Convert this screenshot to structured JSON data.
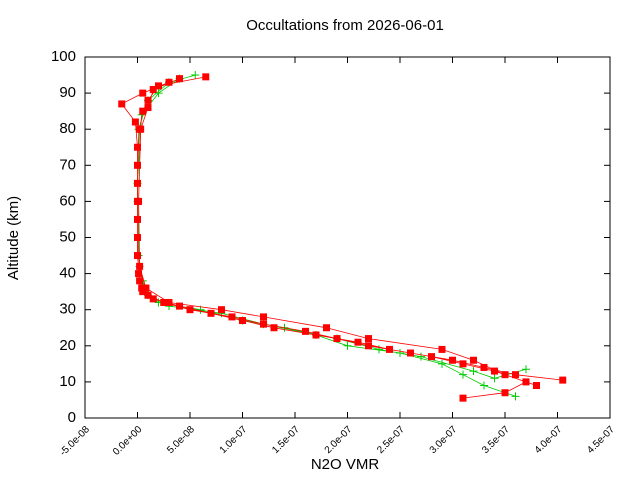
{
  "chart_data": {
    "type": "line",
    "title": "Occultations from 2026-06-01",
    "xlabel": "N2O VMR",
    "ylabel": "Altitude (km)",
    "xlim": [
      -5e-08,
      4.5e-07
    ],
    "ylim": [
      0,
      100
    ],
    "xticks": [
      {
        "value": -5e-08,
        "label": "-5.0e-08"
      },
      {
        "value": 0,
        "label": "0.0e+00"
      },
      {
        "value": 5e-08,
        "label": "5.0e-08"
      },
      {
        "value": 1e-07,
        "label": "1.0e-07"
      },
      {
        "value": 1.5e-07,
        "label": "1.5e-07"
      },
      {
        "value": 2e-07,
        "label": "2.0e-07"
      },
      {
        "value": 2.5e-07,
        "label": "2.5e-07"
      },
      {
        "value": 3e-07,
        "label": "3.0e-07"
      },
      {
        "value": 3.5e-07,
        "label": "3.5e-07"
      },
      {
        "value": 4e-07,
        "label": "4.0e-07"
      },
      {
        "value": 4.5e-07,
        "label": "4.5e-07"
      }
    ],
    "yticks": [
      0,
      10,
      20,
      30,
      40,
      50,
      60,
      70,
      80,
      90,
      100
    ],
    "series": [
      {
        "color": "#00cc00",
        "marker": "plus",
        "x": [
          3.6e-07,
          3.3e-07,
          3.1e-07,
          2.9e-07,
          2.5e-07,
          2e-07,
          1.7e-07,
          1.2e-07,
          8e-08,
          3e-08,
          1e-08,
          5e-09,
          2e-09,
          0,
          1e-09,
          1e-08,
          3e-08,
          5.5e-08,
          null,
          3.7e-07,
          3.4e-07,
          3.2e-07,
          2.7e-07,
          2.3e-07,
          1.9e-07,
          1.4e-07,
          1e-07,
          6e-08,
          2e-08,
          6e-09,
          1e-09,
          0,
          4e-09,
          2e-08,
          4e-08
        ],
        "values": [
          6,
          9,
          12,
          15,
          18,
          20,
          23,
          26,
          29,
          31,
          34,
          38,
          42,
          60,
          80,
          88,
          93,
          95,
          null,
          13.5,
          11,
          13,
          17,
          19,
          22,
          25,
          27,
          30,
          32,
          36,
          45,
          65,
          84,
          90,
          94
        ]
      },
      {
        "color": "#ff0000",
        "marker": "square",
        "x": [
          4.05e-07,
          3.6e-07,
          3.3e-07,
          3e-07,
          2.6e-07,
          2.2e-07,
          1.9e-07,
          1.6e-07,
          1.2e-07,
          9e-08,
          5e-08,
          2.5e-08,
          1e-08,
          4e-09,
          1e-09,
          0,
          0,
          0,
          2e-09,
          5e-09,
          1e-08,
          2e-08,
          6.5e-08,
          null,
          3.1e-07,
          3.5e-07,
          3.7e-07,
          3.4e-07,
          3.1e-07,
          2.8e-07,
          2.4e-07,
          2.1e-07,
          1.7e-07,
          1.3e-07,
          1e-07,
          7e-08,
          4e-08,
          1.5e-08,
          5e-09,
          2e-09,
          0,
          0,
          0,
          0,
          -2e-09,
          -1.5e-08,
          5e-09,
          3e-08,
          null,
          3.8e-07,
          3.5e-07,
          3.2e-07,
          2.9e-07,
          2.2e-07,
          1.8e-07,
          1.2e-07,
          8e-08,
          3e-08,
          8e-09,
          2e-09,
          1e-09,
          3e-09,
          1e-08,
          1.5e-08,
          4e-08
        ],
        "values": [
          10.5,
          12,
          14,
          16,
          18,
          20,
          22,
          24,
          26,
          28,
          30,
          32,
          34,
          36,
          40,
          50,
          60,
          70,
          80,
          85,
          88,
          92,
          94.5,
          null,
          5.5,
          7,
          10,
          13,
          15,
          17,
          19,
          21,
          23,
          25,
          27,
          29,
          31,
          33,
          35,
          38,
          45,
          55,
          65,
          75,
          82,
          87,
          90,
          93,
          null,
          9,
          12,
          16,
          19,
          22,
          25,
          28,
          30,
          32,
          36,
          42,
          60,
          80,
          86,
          91,
          94
        ]
      }
    ]
  }
}
